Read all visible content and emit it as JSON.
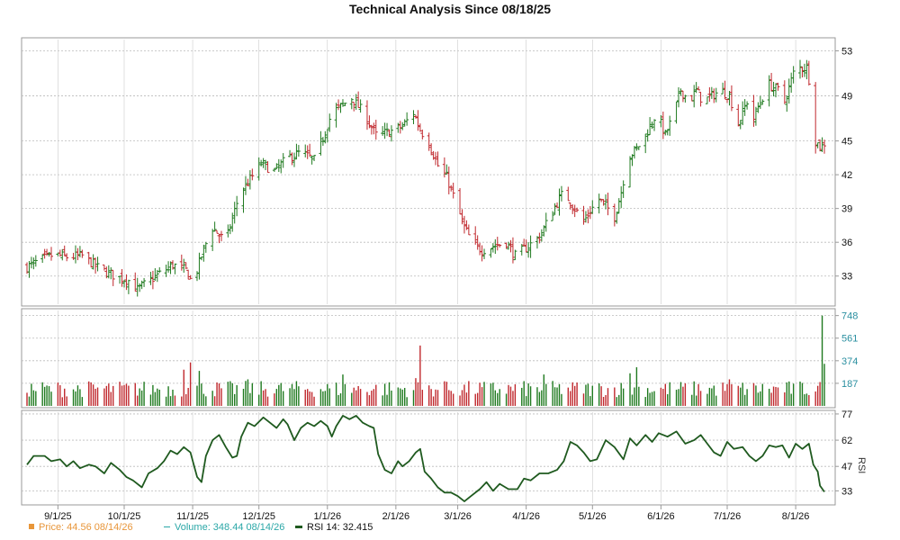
{
  "colors": {
    "up": "#1f7a1f",
    "down": "#c0282d",
    "rsi": "#1f5a1f",
    "price_legend": "#e8963a",
    "volume_legend": "#2aa7a7",
    "grid": "#bbbbbb",
    "frame": "#999999",
    "vol_axis": "#2a8fa0"
  },
  "legend": {
    "price": "Price: 44.56  08/14/26",
    "volume": "Volume: 348.44  08/14/26",
    "rsi": "RSI 14: 32.415"
  },
  "chart_data": {
    "type": "ohlc",
    "title": "Technical Analysis Since 08/18/25",
    "x_ticks": [
      {
        "label": "9/1/25",
        "day": 14
      },
      {
        "label": "10/1/25",
        "day": 44
      },
      {
        "label": "11/1/25",
        "day": 75
      },
      {
        "label": "12/1/25",
        "day": 105
      },
      {
        "label": "1/1/26",
        "day": 136
      },
      {
        "label": "2/1/26",
        "day": 167
      },
      {
        "label": "3/1/26",
        "day": 195
      },
      {
        "label": "4/1/26",
        "day": 226
      },
      {
        "label": "5/1/26",
        "day": 256
      },
      {
        "label": "6/1/26",
        "day": 287
      },
      {
        "label": "7/1/26",
        "day": 317
      },
      {
        "label": "8/1/26",
        "day": 348
      }
    ],
    "x_range": [
      0,
      361
    ],
    "price": {
      "yticks": [
        33,
        36,
        39,
        42,
        45,
        49,
        53
      ],
      "ylim": [
        30.5,
        54
      ],
      "anchors": [
        [
          0,
          33.8
        ],
        [
          6,
          34.4
        ],
        [
          12,
          34.9
        ],
        [
          18,
          34.7
        ],
        [
          25,
          34.8
        ],
        [
          33,
          33.6
        ],
        [
          40,
          33.0
        ],
        [
          46,
          32.6
        ],
        [
          50,
          31.8
        ],
        [
          57,
          32.8
        ],
        [
          66,
          34.0
        ],
        [
          72,
          33.5
        ],
        [
          75,
          32.3
        ],
        [
          80,
          35.4
        ],
        [
          84,
          37.3
        ],
        [
          90,
          36.0
        ],
        [
          96,
          40.2
        ],
        [
          100,
          41.3
        ],
        [
          106,
          43.0
        ],
        [
          112,
          42.3
        ],
        [
          118,
          43.5
        ],
        [
          124,
          44.0
        ],
        [
          130,
          43.3
        ],
        [
          134,
          45.3
        ],
        [
          138,
          47.5
        ],
        [
          143,
          48.2
        ],
        [
          147,
          48.8
        ],
        [
          153,
          47.3
        ],
        [
          158,
          45.5
        ],
        [
          164,
          45.8
        ],
        [
          170,
          46.3
        ],
        [
          175,
          47.5
        ],
        [
          178,
          46.0
        ],
        [
          182,
          44.8
        ],
        [
          186,
          42.8
        ],
        [
          190,
          41.8
        ],
        [
          195,
          39.0
        ],
        [
          198,
          37.3
        ],
        [
          202,
          35.8
        ],
        [
          206,
          35.3
        ],
        [
          212,
          35.7
        ],
        [
          217,
          36.0
        ],
        [
          221,
          34.8
        ],
        [
          226,
          35.5
        ],
        [
          232,
          36.5
        ],
        [
          236,
          38.0
        ],
        [
          240,
          39.5
        ],
        [
          243,
          40.5
        ],
        [
          248,
          39.0
        ],
        [
          252,
          37.8
        ],
        [
          255,
          38.8
        ],
        [
          259,
          39.8
        ],
        [
          263,
          39.0
        ],
        [
          266,
          38.3
        ],
        [
          269,
          40.5
        ],
        [
          272,
          43.5
        ],
        [
          276,
          44.3
        ],
        [
          280,
          45.5
        ],
        [
          285,
          47.5
        ],
        [
          289,
          45.5
        ],
        [
          293,
          47.5
        ],
        [
          296,
          49.5
        ],
        [
          300,
          48.5
        ],
        [
          303,
          49.5
        ],
        [
          306,
          48.5
        ],
        [
          310,
          49.0
        ],
        [
          314,
          49.5
        ],
        [
          318,
          49.0
        ],
        [
          322,
          46.5
        ],
        [
          326,
          48.5
        ],
        [
          329,
          47.0
        ],
        [
          332,
          48.5
        ],
        [
          336,
          50.0
        ],
        [
          340,
          49.5
        ],
        [
          343,
          48.5
        ],
        [
          347,
          51.0
        ],
        [
          350,
          51.5
        ],
        [
          353,
          51.5
        ],
        [
          355,
          49.5
        ],
        [
          357,
          45.0
        ],
        [
          359,
          44.5
        ],
        [
          361,
          44.56
        ]
      ],
      "last": 44.56
    },
    "volume": {
      "yticks": [
        187,
        374,
        561,
        748
      ],
      "ylim": [
        0,
        790
      ],
      "typical": 160,
      "spikes": [
        [
          71,
          300
        ],
        [
          74,
          360
        ],
        [
          78,
          290
        ],
        [
          100,
          220
        ],
        [
          143,
          260
        ],
        [
          176,
          230
        ],
        [
          178,
          500
        ],
        [
          190,
          200
        ],
        [
          201,
          340
        ],
        [
          234,
          260
        ],
        [
          264,
          200
        ],
        [
          273,
          270
        ],
        [
          276,
          320
        ],
        [
          292,
          240
        ],
        [
          318,
          220
        ],
        [
          360,
          748
        ],
        [
          361,
          348.44
        ]
      ],
      "last": 348.44
    },
    "rsi": {
      "yticks": [
        33,
        47,
        62,
        77
      ],
      "ylim": [
        26,
        78
      ],
      "points": [
        [
          0,
          48
        ],
        [
          3,
          53
        ],
        [
          8,
          53
        ],
        [
          11,
          50
        ],
        [
          15,
          51
        ],
        [
          18,
          47
        ],
        [
          21,
          50
        ],
        [
          24,
          46
        ],
        [
          28,
          48
        ],
        [
          31,
          47
        ],
        [
          35,
          43
        ],
        [
          38,
          49
        ],
        [
          42,
          45
        ],
        [
          45,
          41
        ],
        [
          48,
          39
        ],
        [
          52,
          35
        ],
        [
          55,
          43
        ],
        [
          59,
          46
        ],
        [
          62,
          50
        ],
        [
          65,
          56
        ],
        [
          68,
          54
        ],
        [
          71,
          58
        ],
        [
          74,
          55
        ],
        [
          77,
          41
        ],
        [
          79,
          38
        ],
        [
          81,
          53
        ],
        [
          84,
          62
        ],
        [
          87,
          65
        ],
        [
          90,
          58
        ],
        [
          93,
          52
        ],
        [
          95,
          53
        ],
        [
          97,
          64
        ],
        [
          100,
          72
        ],
        [
          103,
          70
        ],
        [
          107,
          75
        ],
        [
          110,
          72
        ],
        [
          113,
          69
        ],
        [
          116,
          74
        ],
        [
          118,
          71
        ],
        [
          121,
          62
        ],
        [
          124,
          69
        ],
        [
          127,
          72
        ],
        [
          130,
          70
        ],
        [
          133,
          73
        ],
        [
          136,
          70
        ],
        [
          138,
          64
        ],
        [
          140,
          70
        ],
        [
          143,
          76
        ],
        [
          146,
          74
        ],
        [
          149,
          76
        ],
        [
          152,
          72
        ],
        [
          155,
          70
        ],
        [
          157,
          69
        ],
        [
          159,
          54
        ],
        [
          162,
          45
        ],
        [
          165,
          43
        ],
        [
          168,
          50
        ],
        [
          170,
          47
        ],
        [
          173,
          50
        ],
        [
          176,
          55
        ],
        [
          178,
          57
        ],
        [
          180,
          44
        ],
        [
          183,
          40
        ],
        [
          186,
          35
        ],
        [
          189,
          32
        ],
        [
          192,
          32
        ],
        [
          195,
          30
        ],
        [
          198,
          27
        ],
        [
          201,
          30
        ],
        [
          205,
          34
        ],
        [
          208,
          38
        ],
        [
          211,
          33
        ],
        [
          214,
          37
        ],
        [
          218,
          34
        ],
        [
          222,
          34
        ],
        [
          225,
          40
        ],
        [
          228,
          39
        ],
        [
          232,
          43
        ],
        [
          236,
          43
        ],
        [
          240,
          45
        ],
        [
          243,
          50
        ],
        [
          246,
          61
        ],
        [
          249,
          59
        ],
        [
          252,
          55
        ],
        [
          255,
          50
        ],
        [
          258,
          51
        ],
        [
          262,
          62
        ],
        [
          266,
          58
        ],
        [
          270,
          51
        ],
        [
          273,
          63
        ],
        [
          276,
          59
        ],
        [
          280,
          65
        ],
        [
          283,
          61
        ],
        [
          286,
          66
        ],
        [
          290,
          64
        ],
        [
          294,
          67
        ],
        [
          298,
          60
        ],
        [
          302,
          62
        ],
        [
          305,
          65
        ],
        [
          308,
          60
        ],
        [
          311,
          55
        ],
        [
          314,
          53
        ],
        [
          317,
          61
        ],
        [
          320,
          57
        ],
        [
          324,
          58
        ],
        [
          327,
          53
        ],
        [
          330,
          50
        ],
        [
          333,
          53
        ],
        [
          336,
          59
        ],
        [
          339,
          58
        ],
        [
          342,
          59
        ],
        [
          345,
          52
        ],
        [
          348,
          60
        ],
        [
          351,
          57
        ],
        [
          354,
          60
        ],
        [
          356,
          48
        ],
        [
          358,
          44
        ],
        [
          359,
          36
        ],
        [
          361,
          32.415
        ]
      ],
      "last": 32.415
    },
    "grid": true
  }
}
